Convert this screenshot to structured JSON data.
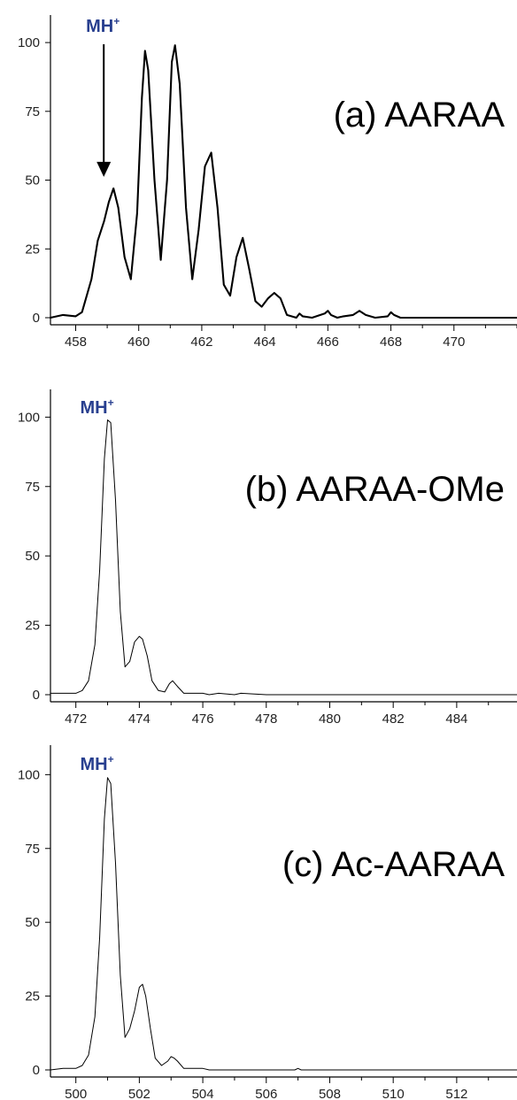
{
  "chart_data": [
    {
      "type": "line",
      "label": "(a)  AARAA",
      "annotation": "MH",
      "annotation_sup": "+",
      "annotation_arrow": true,
      "annotation_x": 459.2,
      "xlim": [
        457.2,
        472
      ],
      "ylim": [
        0,
        110
      ],
      "xticks": [
        458,
        460,
        462,
        464,
        466,
        468,
        470
      ],
      "yticks": [
        0,
        25,
        50,
        75,
        100
      ],
      "stroke": "#000000",
      "line_weight": "bold",
      "x": [
        457.2,
        457.6,
        458.0,
        458.2,
        458.3,
        458.5,
        458.7,
        458.9,
        459.05,
        459.2,
        459.35,
        459.55,
        459.75,
        459.95,
        460.1,
        460.2,
        460.3,
        460.5,
        460.7,
        460.9,
        461.05,
        461.15,
        461.3,
        461.5,
        461.7,
        461.9,
        462.1,
        462.3,
        462.5,
        462.7,
        462.9,
        463.1,
        463.3,
        463.5,
        463.7,
        463.9,
        464.1,
        464.3,
        464.5,
        464.7,
        465.0,
        465.1,
        465.2,
        465.5,
        465.9,
        466.0,
        466.1,
        466.3,
        466.5,
        466.8,
        467.0,
        467.2,
        467.5,
        467.9,
        468.0,
        468.1,
        468.3,
        469.0,
        470.0,
        471.0,
        472.0
      ],
      "y": [
        0,
        1,
        0.5,
        2,
        6,
        14,
        28,
        35,
        42,
        47,
        40,
        22,
        14,
        38,
        80,
        97,
        90,
        50,
        21,
        50,
        93,
        99,
        85,
        40,
        14,
        32,
        55,
        60,
        40,
        12,
        8,
        22,
        29,
        18,
        6,
        4,
        7,
        9,
        7,
        1,
        0,
        1.5,
        0.5,
        0,
        1.5,
        2.5,
        1,
        0,
        0.5,
        1,
        2.5,
        1,
        0,
        0.5,
        2,
        1,
        0,
        0,
        0,
        0,
        0
      ]
    },
    {
      "type": "line",
      "label": "(b) AARAA-OMe",
      "annotation": "MH",
      "annotation_sup": "+",
      "annotation_arrow": false,
      "annotation_x": 473.0,
      "xlim": [
        471.2,
        485.9
      ],
      "ylim": [
        0,
        110
      ],
      "xticks": [
        472,
        474,
        476,
        478,
        480,
        482,
        484
      ],
      "yticks": [
        0,
        25,
        50,
        75,
        100
      ],
      "stroke": "#000000",
      "line_weight": "thin",
      "x": [
        471.2,
        471.6,
        472.0,
        472.2,
        472.4,
        472.6,
        472.75,
        472.9,
        473.0,
        473.1,
        473.25,
        473.4,
        473.55,
        473.7,
        473.85,
        474.0,
        474.1,
        474.25,
        474.4,
        474.6,
        474.8,
        474.95,
        475.05,
        475.2,
        475.4,
        475.6,
        476.0,
        476.2,
        476.5,
        477.0,
        477.2,
        478.0,
        480.0,
        482.0,
        484.0,
        485.9
      ],
      "y": [
        0.5,
        0.5,
        0.5,
        1.5,
        5,
        18,
        45,
        85,
        99,
        98,
        70,
        30,
        10,
        12,
        19,
        21,
        20,
        14,
        5,
        1.5,
        1,
        4,
        5,
        3,
        0.5,
        0.5,
        0.5,
        0,
        0.5,
        0,
        0.5,
        0,
        0,
        0,
        0,
        0
      ]
    },
    {
      "type": "line",
      "label": "(c) Ac-AARAA",
      "annotation": "MH",
      "annotation_sup": "+",
      "annotation_arrow": false,
      "annotation_x": 501.0,
      "xlim": [
        499.2,
        513.9
      ],
      "ylim": [
        0,
        110
      ],
      "xticks": [
        500,
        502,
        504,
        506,
        508,
        510,
        512
      ],
      "yticks": [
        0,
        25,
        50,
        75,
        100
      ],
      "stroke": "#000000",
      "line_weight": "thin",
      "x": [
        499.2,
        499.6,
        500.0,
        500.2,
        500.4,
        500.6,
        500.75,
        500.9,
        501.0,
        501.1,
        501.25,
        501.4,
        501.55,
        501.7,
        501.85,
        502.0,
        502.1,
        502.2,
        502.35,
        502.5,
        502.7,
        502.9,
        503.0,
        503.1,
        503.2,
        503.4,
        503.6,
        504.0,
        504.2,
        505.0,
        506.0,
        506.9,
        507.0,
        507.1,
        508.0,
        510.0,
        512.0,
        513.9
      ],
      "y": [
        0,
        0.5,
        0.5,
        1.5,
        5,
        18,
        45,
        85,
        99,
        97,
        70,
        32,
        11,
        14,
        20,
        28,
        29,
        25,
        14,
        4,
        1.5,
        3,
        4.5,
        4,
        3,
        0.5,
        0.5,
        0.5,
        0,
        0,
        0,
        0,
        0.5,
        0,
        0,
        0,
        0,
        0
      ]
    }
  ]
}
